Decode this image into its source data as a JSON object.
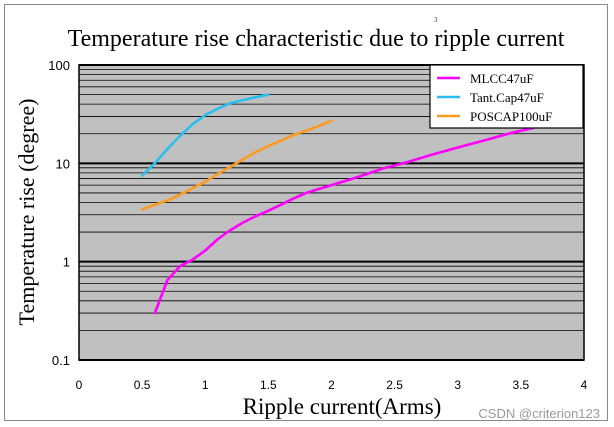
{
  "chart_data": {
    "type": "line",
    "title": "Temperature rise characteristic due to ripple current",
    "xlabel": "Ripple current(Arms)",
    "ylabel": "Temperature rise (degree)",
    "xlim": [
      0,
      4
    ],
    "ylim": [
      0.1,
      100
    ],
    "y_scale": "log",
    "x_ticks": [
      "0",
      "0.5",
      "1",
      "1.5",
      "2",
      "2.5",
      "3",
      "3.5",
      "4"
    ],
    "y_ticks": [
      "0.1",
      "1",
      "10",
      "100"
    ],
    "grid": true,
    "plot_background": "#c0c0c0",
    "legend_position": "top-right",
    "series": [
      {
        "name": "MLCC47uF",
        "color": "#ff00ff",
        "x": [
          0.6,
          0.7,
          0.8,
          0.9,
          1.0,
          1.1,
          1.2,
          1.3,
          1.4,
          1.5,
          1.6,
          1.7,
          1.8,
          2.0,
          2.2,
          2.4,
          2.6,
          2.8,
          3.0,
          3.2,
          3.4,
          3.6
        ],
        "y": [
          0.3,
          0.65,
          0.9,
          1.05,
          1.3,
          1.7,
          2.1,
          2.5,
          2.9,
          3.3,
          3.8,
          4.4,
          5.0,
          6.0,
          7.2,
          8.8,
          10.3,
          12.3,
          14.5,
          17.0,
          20.0,
          23.0
        ]
      },
      {
        "name": "Tant.Cap47uF",
        "color": "#28bff0",
        "x": [
          0.5,
          0.6,
          0.7,
          0.8,
          0.9,
          1.0,
          1.1,
          1.2,
          1.3,
          1.4,
          1.5
        ],
        "y": [
          7.5,
          10.0,
          14.0,
          19.0,
          25.0,
          31.0,
          36.0,
          41.0,
          44.0,
          47.0,
          50.0
        ]
      },
      {
        "name": "POSCAP100uF",
        "color": "#ff9a20",
        "x": [
          0.5,
          0.6,
          0.7,
          0.8,
          0.9,
          1.0,
          1.1,
          1.2,
          1.3,
          1.4,
          1.5,
          1.6,
          1.7,
          1.8,
          1.9,
          2.0
        ],
        "y": [
          3.4,
          3.8,
          4.2,
          4.8,
          5.6,
          6.5,
          7.8,
          9.2,
          11.0,
          13.0,
          15.0,
          17.0,
          19.5,
          21.5,
          24.0,
          27.0
        ]
      }
    ]
  },
  "watermark": "CSDN @criterion123",
  "title_mark": "3"
}
